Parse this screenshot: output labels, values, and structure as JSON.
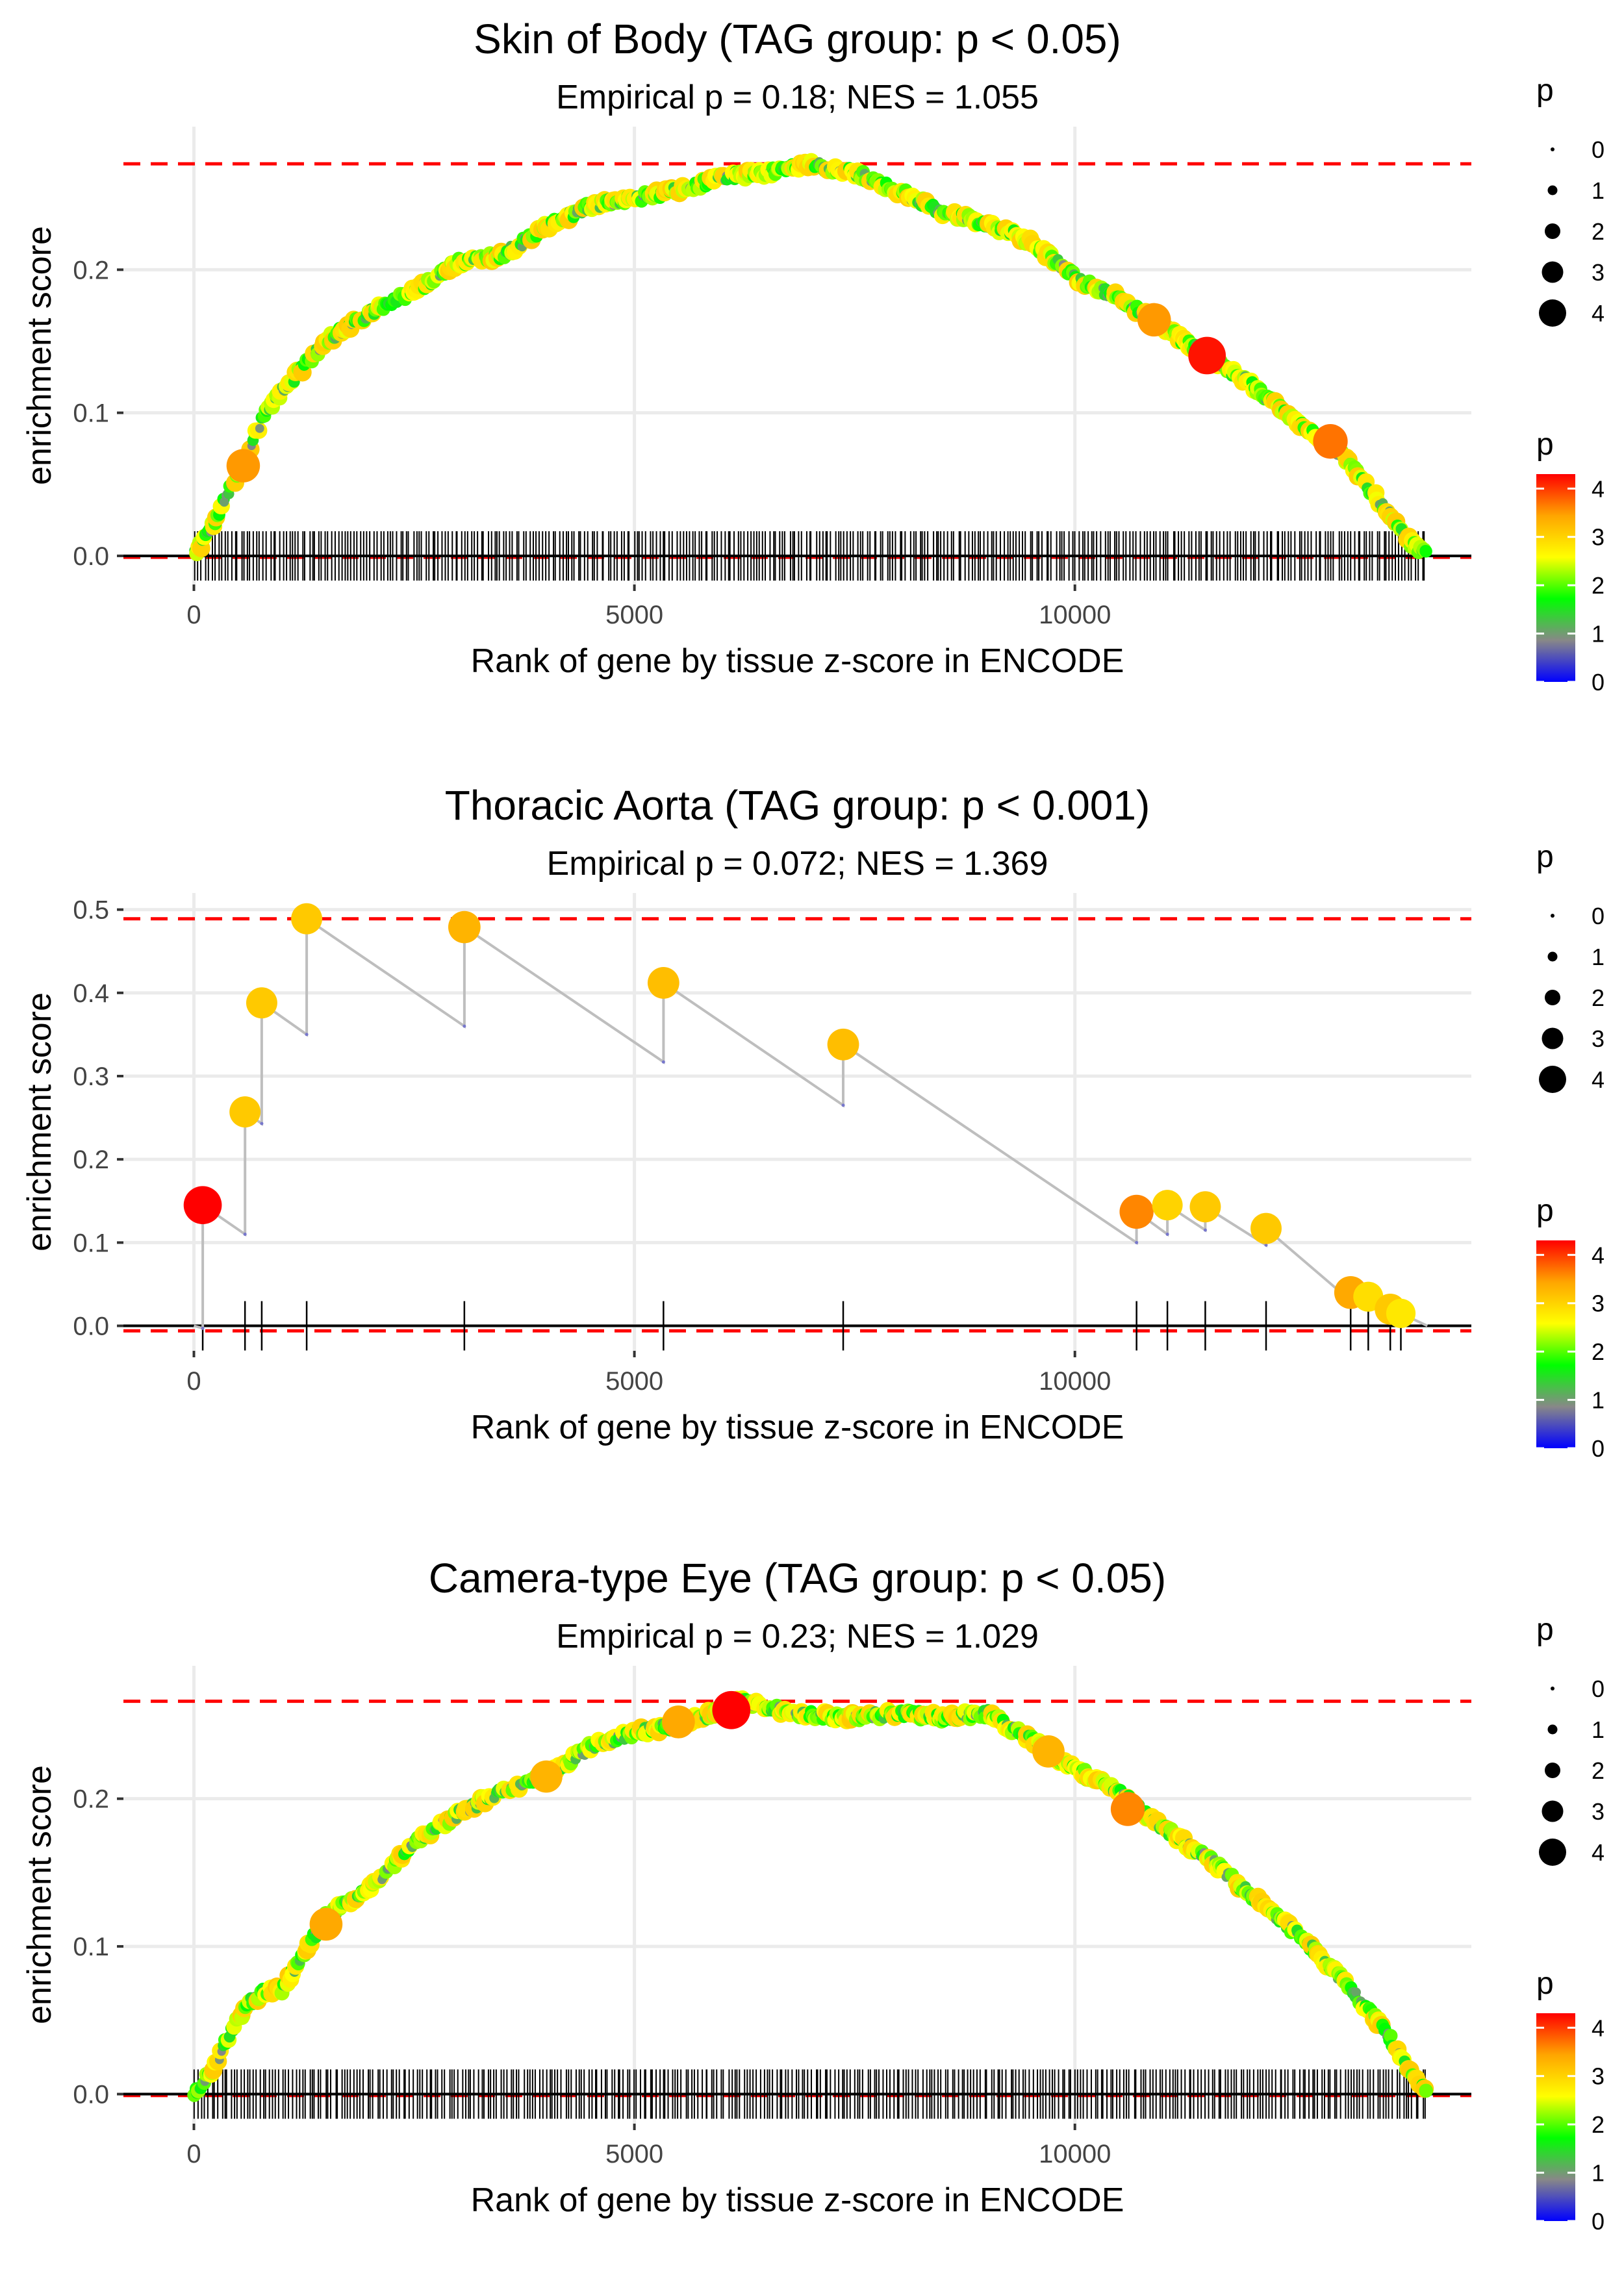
{
  "figure_title": "",
  "chart_data": [
    {
      "type": "line",
      "title": "Skin of Body (TAG group: p < 0.05)",
      "subtitle": "Empirical p = 0.18; NES = 1.055",
      "xlabel": "Rank of gene by tissue z-score in ENCODE",
      "ylabel": "enrichment score",
      "xlim": [
        -800,
        14500
      ],
      "ylim": [
        -0.02,
        0.3
      ],
      "x_ticks": [
        0,
        5000,
        10000
      ],
      "x_tick_labels": [
        "0",
        "5000",
        "10000"
      ],
      "y_ticks": [
        0.0,
        0.1,
        0.2
      ],
      "y_tick_labels": [
        "0.0",
        "0.1",
        "0.2"
      ],
      "max_es": 0.274,
      "min_es": -0.001,
      "n_genes": 14000,
      "curve": [
        {
          "x": 0,
          "y": 0.0
        },
        {
          "x": 200,
          "y": 0.02
        },
        {
          "x": 400,
          "y": 0.045
        },
        {
          "x": 600,
          "y": 0.07
        },
        {
          "x": 800,
          "y": 0.1
        },
        {
          "x": 1000,
          "y": 0.115
        },
        {
          "x": 1500,
          "y": 0.15
        },
        {
          "x": 2000,
          "y": 0.17
        },
        {
          "x": 2500,
          "y": 0.185
        },
        {
          "x": 3000,
          "y": 0.205
        },
        {
          "x": 3500,
          "y": 0.21
        },
        {
          "x": 4000,
          "y": 0.23
        },
        {
          "x": 4500,
          "y": 0.245
        },
        {
          "x": 5000,
          "y": 0.25
        },
        {
          "x": 5500,
          "y": 0.255
        },
        {
          "x": 6000,
          "y": 0.265
        },
        {
          "x": 6500,
          "y": 0.268
        },
        {
          "x": 7000,
          "y": 0.274
        },
        {
          "x": 7500,
          "y": 0.268
        },
        {
          "x": 8000,
          "y": 0.255
        },
        {
          "x": 8500,
          "y": 0.24
        },
        {
          "x": 9000,
          "y": 0.232
        },
        {
          "x": 9500,
          "y": 0.22
        },
        {
          "x": 10000,
          "y": 0.195
        },
        {
          "x": 10500,
          "y": 0.18
        },
        {
          "x": 11000,
          "y": 0.16
        },
        {
          "x": 11500,
          "y": 0.14
        },
        {
          "x": 12000,
          "y": 0.12
        },
        {
          "x": 12500,
          "y": 0.095
        },
        {
          "x": 13000,
          "y": 0.072
        },
        {
          "x": 13500,
          "y": 0.035
        },
        {
          "x": 13800,
          "y": 0.01
        },
        {
          "x": 14000,
          "y": 0.0
        }
      ],
      "highlight_points": [
        {
          "x": 560,
          "y": 0.063,
          "p": 3.5
        },
        {
          "x": 10900,
          "y": 0.165,
          "p": 3.5
        },
        {
          "x": 11500,
          "y": 0.14,
          "p": 4.2
        },
        {
          "x": 12900,
          "y": 0.08,
          "p": 3.7
        }
      ],
      "hits": "dense",
      "hit_range": [
        0,
        14000
      ],
      "hit_count": 380
    },
    {
      "type": "line",
      "title": "Thoracic Aorta (TAG group: p < 0.001)",
      "subtitle": "Empirical p = 0.072; NES = 1.369",
      "xlabel": "Rank of gene by tissue z-score in ENCODE",
      "ylabel": "enrichment score",
      "xlim": [
        -800,
        14500
      ],
      "ylim": [
        -0.03,
        0.52
      ],
      "x_ticks": [
        0,
        5000,
        10000
      ],
      "x_tick_labels": [
        "0",
        "5000",
        "10000"
      ],
      "y_ticks": [
        0.0,
        0.1,
        0.2,
        0.3,
        0.4,
        0.5
      ],
      "y_tick_labels": [
        "0.0",
        "0.1",
        "0.2",
        "0.3",
        "0.4",
        "0.5"
      ],
      "max_es": 0.489,
      "min_es": -0.006,
      "n_genes": 14000,
      "curve": [
        {
          "x": 0,
          "y": 0.0
        },
        {
          "x": 100,
          "y": -0.003
        },
        {
          "x": 100,
          "y": 0.145
        },
        {
          "x": 580,
          "y": 0.11
        },
        {
          "x": 580,
          "y": 0.257
        },
        {
          "x": 770,
          "y": 0.243
        },
        {
          "x": 770,
          "y": 0.388
        },
        {
          "x": 1280,
          "y": 0.35
        },
        {
          "x": 1280,
          "y": 0.489
        },
        {
          "x": 3070,
          "y": 0.36
        },
        {
          "x": 3070,
          "y": 0.479
        },
        {
          "x": 5330,
          "y": 0.317
        },
        {
          "x": 5330,
          "y": 0.412
        },
        {
          "x": 7370,
          "y": 0.265
        },
        {
          "x": 7370,
          "y": 0.338
        },
        {
          "x": 10700,
          "y": 0.1
        },
        {
          "x": 10700,
          "y": 0.137
        },
        {
          "x": 11050,
          "y": 0.11
        },
        {
          "x": 11050,
          "y": 0.145
        },
        {
          "x": 11480,
          "y": 0.115
        },
        {
          "x": 11480,
          "y": 0.143
        },
        {
          "x": 12170,
          "y": 0.097
        },
        {
          "x": 12170,
          "y": 0.117
        },
        {
          "x": 13130,
          "y": 0.03
        },
        {
          "x": 13130,
          "y": 0.04
        },
        {
          "x": 13330,
          "y": 0.03
        },
        {
          "x": 13330,
          "y": 0.035
        },
        {
          "x": 13580,
          "y": 0.01
        },
        {
          "x": 13580,
          "y": 0.02
        },
        {
          "x": 13700,
          "y": 0.012
        },
        {
          "x": 13700,
          "y": 0.015
        },
        {
          "x": 14000,
          "y": 0.0
        }
      ],
      "highlight_points": [
        {
          "x": 100,
          "y": 0.145,
          "p": 4.3
        },
        {
          "x": 580,
          "y": 0.257,
          "p": 3.1
        },
        {
          "x": 770,
          "y": 0.388,
          "p": 3.1
        },
        {
          "x": 1280,
          "y": 0.489,
          "p": 3.1
        },
        {
          "x": 3070,
          "y": 0.479,
          "p": 3.3
        },
        {
          "x": 5330,
          "y": 0.412,
          "p": 3.2
        },
        {
          "x": 7370,
          "y": 0.338,
          "p": 3.2
        },
        {
          "x": 10700,
          "y": 0.137,
          "p": 3.6
        },
        {
          "x": 11050,
          "y": 0.145,
          "p": 3.0
        },
        {
          "x": 11480,
          "y": 0.143,
          "p": 3.1
        },
        {
          "x": 12170,
          "y": 0.117,
          "p": 3.1
        },
        {
          "x": 13130,
          "y": 0.04,
          "p": 3.4
        },
        {
          "x": 13330,
          "y": 0.035,
          "p": 2.9
        },
        {
          "x": 13580,
          "y": 0.02,
          "p": 3.1
        },
        {
          "x": 13700,
          "y": 0.015,
          "p": 2.8
        }
      ],
      "hits": [
        100,
        580,
        770,
        1280,
        3070,
        5330,
        7370,
        10700,
        11050,
        11480,
        12170,
        13130,
        13330,
        13580,
        13700
      ]
    },
    {
      "type": "line",
      "title": "Camera-type Eye (TAG group: p < 0.05)",
      "subtitle": "Empirical p = 0.23; NES = 1.029",
      "xlabel": "Rank of gene by tissue z-score in ENCODE",
      "ylabel": "enrichment score",
      "xlim": [
        -800,
        14500
      ],
      "ylim": [
        -0.02,
        0.29
      ],
      "x_ticks": [
        0,
        5000,
        10000
      ],
      "x_tick_labels": [
        "0",
        "5000",
        "10000"
      ],
      "y_ticks": [
        0.0,
        0.1,
        0.2
      ],
      "y_tick_labels": [
        "0.0",
        "0.1",
        "0.2"
      ],
      "max_es": 0.266,
      "min_es": -0.001,
      "n_genes": 14000,
      "curve": [
        {
          "x": 0,
          "y": 0.0
        },
        {
          "x": 200,
          "y": 0.015
        },
        {
          "x": 400,
          "y": 0.04
        },
        {
          "x": 600,
          "y": 0.06
        },
        {
          "x": 800,
          "y": 0.07
        },
        {
          "x": 1000,
          "y": 0.07
        },
        {
          "x": 1200,
          "y": 0.09
        },
        {
          "x": 1500,
          "y": 0.12
        },
        {
          "x": 2000,
          "y": 0.14
        },
        {
          "x": 2500,
          "y": 0.17
        },
        {
          "x": 3000,
          "y": 0.19
        },
        {
          "x": 3500,
          "y": 0.205
        },
        {
          "x": 4000,
          "y": 0.215
        },
        {
          "x": 4500,
          "y": 0.235
        },
        {
          "x": 5000,
          "y": 0.245
        },
        {
          "x": 5500,
          "y": 0.25
        },
        {
          "x": 6000,
          "y": 0.26
        },
        {
          "x": 6200,
          "y": 0.266
        },
        {
          "x": 6800,
          "y": 0.258
        },
        {
          "x": 7500,
          "y": 0.255
        },
        {
          "x": 8000,
          "y": 0.258
        },
        {
          "x": 8500,
          "y": 0.255
        },
        {
          "x": 9000,
          "y": 0.258
        },
        {
          "x": 9500,
          "y": 0.24
        },
        {
          "x": 10000,
          "y": 0.22
        },
        {
          "x": 10500,
          "y": 0.205
        },
        {
          "x": 11000,
          "y": 0.18
        },
        {
          "x": 11500,
          "y": 0.16
        },
        {
          "x": 12000,
          "y": 0.135
        },
        {
          "x": 12500,
          "y": 0.11
        },
        {
          "x": 13000,
          "y": 0.08
        },
        {
          "x": 13500,
          "y": 0.045
        },
        {
          "x": 13800,
          "y": 0.015
        },
        {
          "x": 14000,
          "y": 0.0
        }
      ],
      "highlight_points": [
        {
          "x": 1500,
          "y": 0.115,
          "p": 3.4
        },
        {
          "x": 4000,
          "y": 0.215,
          "p": 3.3
        },
        {
          "x": 5500,
          "y": 0.252,
          "p": 3.4
        },
        {
          "x": 6100,
          "y": 0.26,
          "p": 4.3
        },
        {
          "x": 9700,
          "y": 0.232,
          "p": 3.3
        },
        {
          "x": 10600,
          "y": 0.193,
          "p": 3.6
        }
      ],
      "hits": "dense",
      "hit_range": [
        0,
        14000
      ],
      "hit_count": 380
    }
  ],
  "legend": {
    "size_title": "p",
    "size_levels": [
      "0",
      "1",
      "2",
      "3",
      "4"
    ],
    "color_title": "p",
    "color_levels": [
      "0",
      "1",
      "2",
      "3",
      "4"
    ],
    "color_scale": [
      "#0000ff",
      "#888888",
      "#00ff00",
      "#ffff00",
      "#ffa500",
      "#ff0000"
    ],
    "color_max": 4.3
  },
  "colors": {
    "curve": "#bebebe",
    "max_line": "#ff0000",
    "zero_line": "#000000",
    "hit_tick": "#000000",
    "grid": "#ebebeb"
  }
}
